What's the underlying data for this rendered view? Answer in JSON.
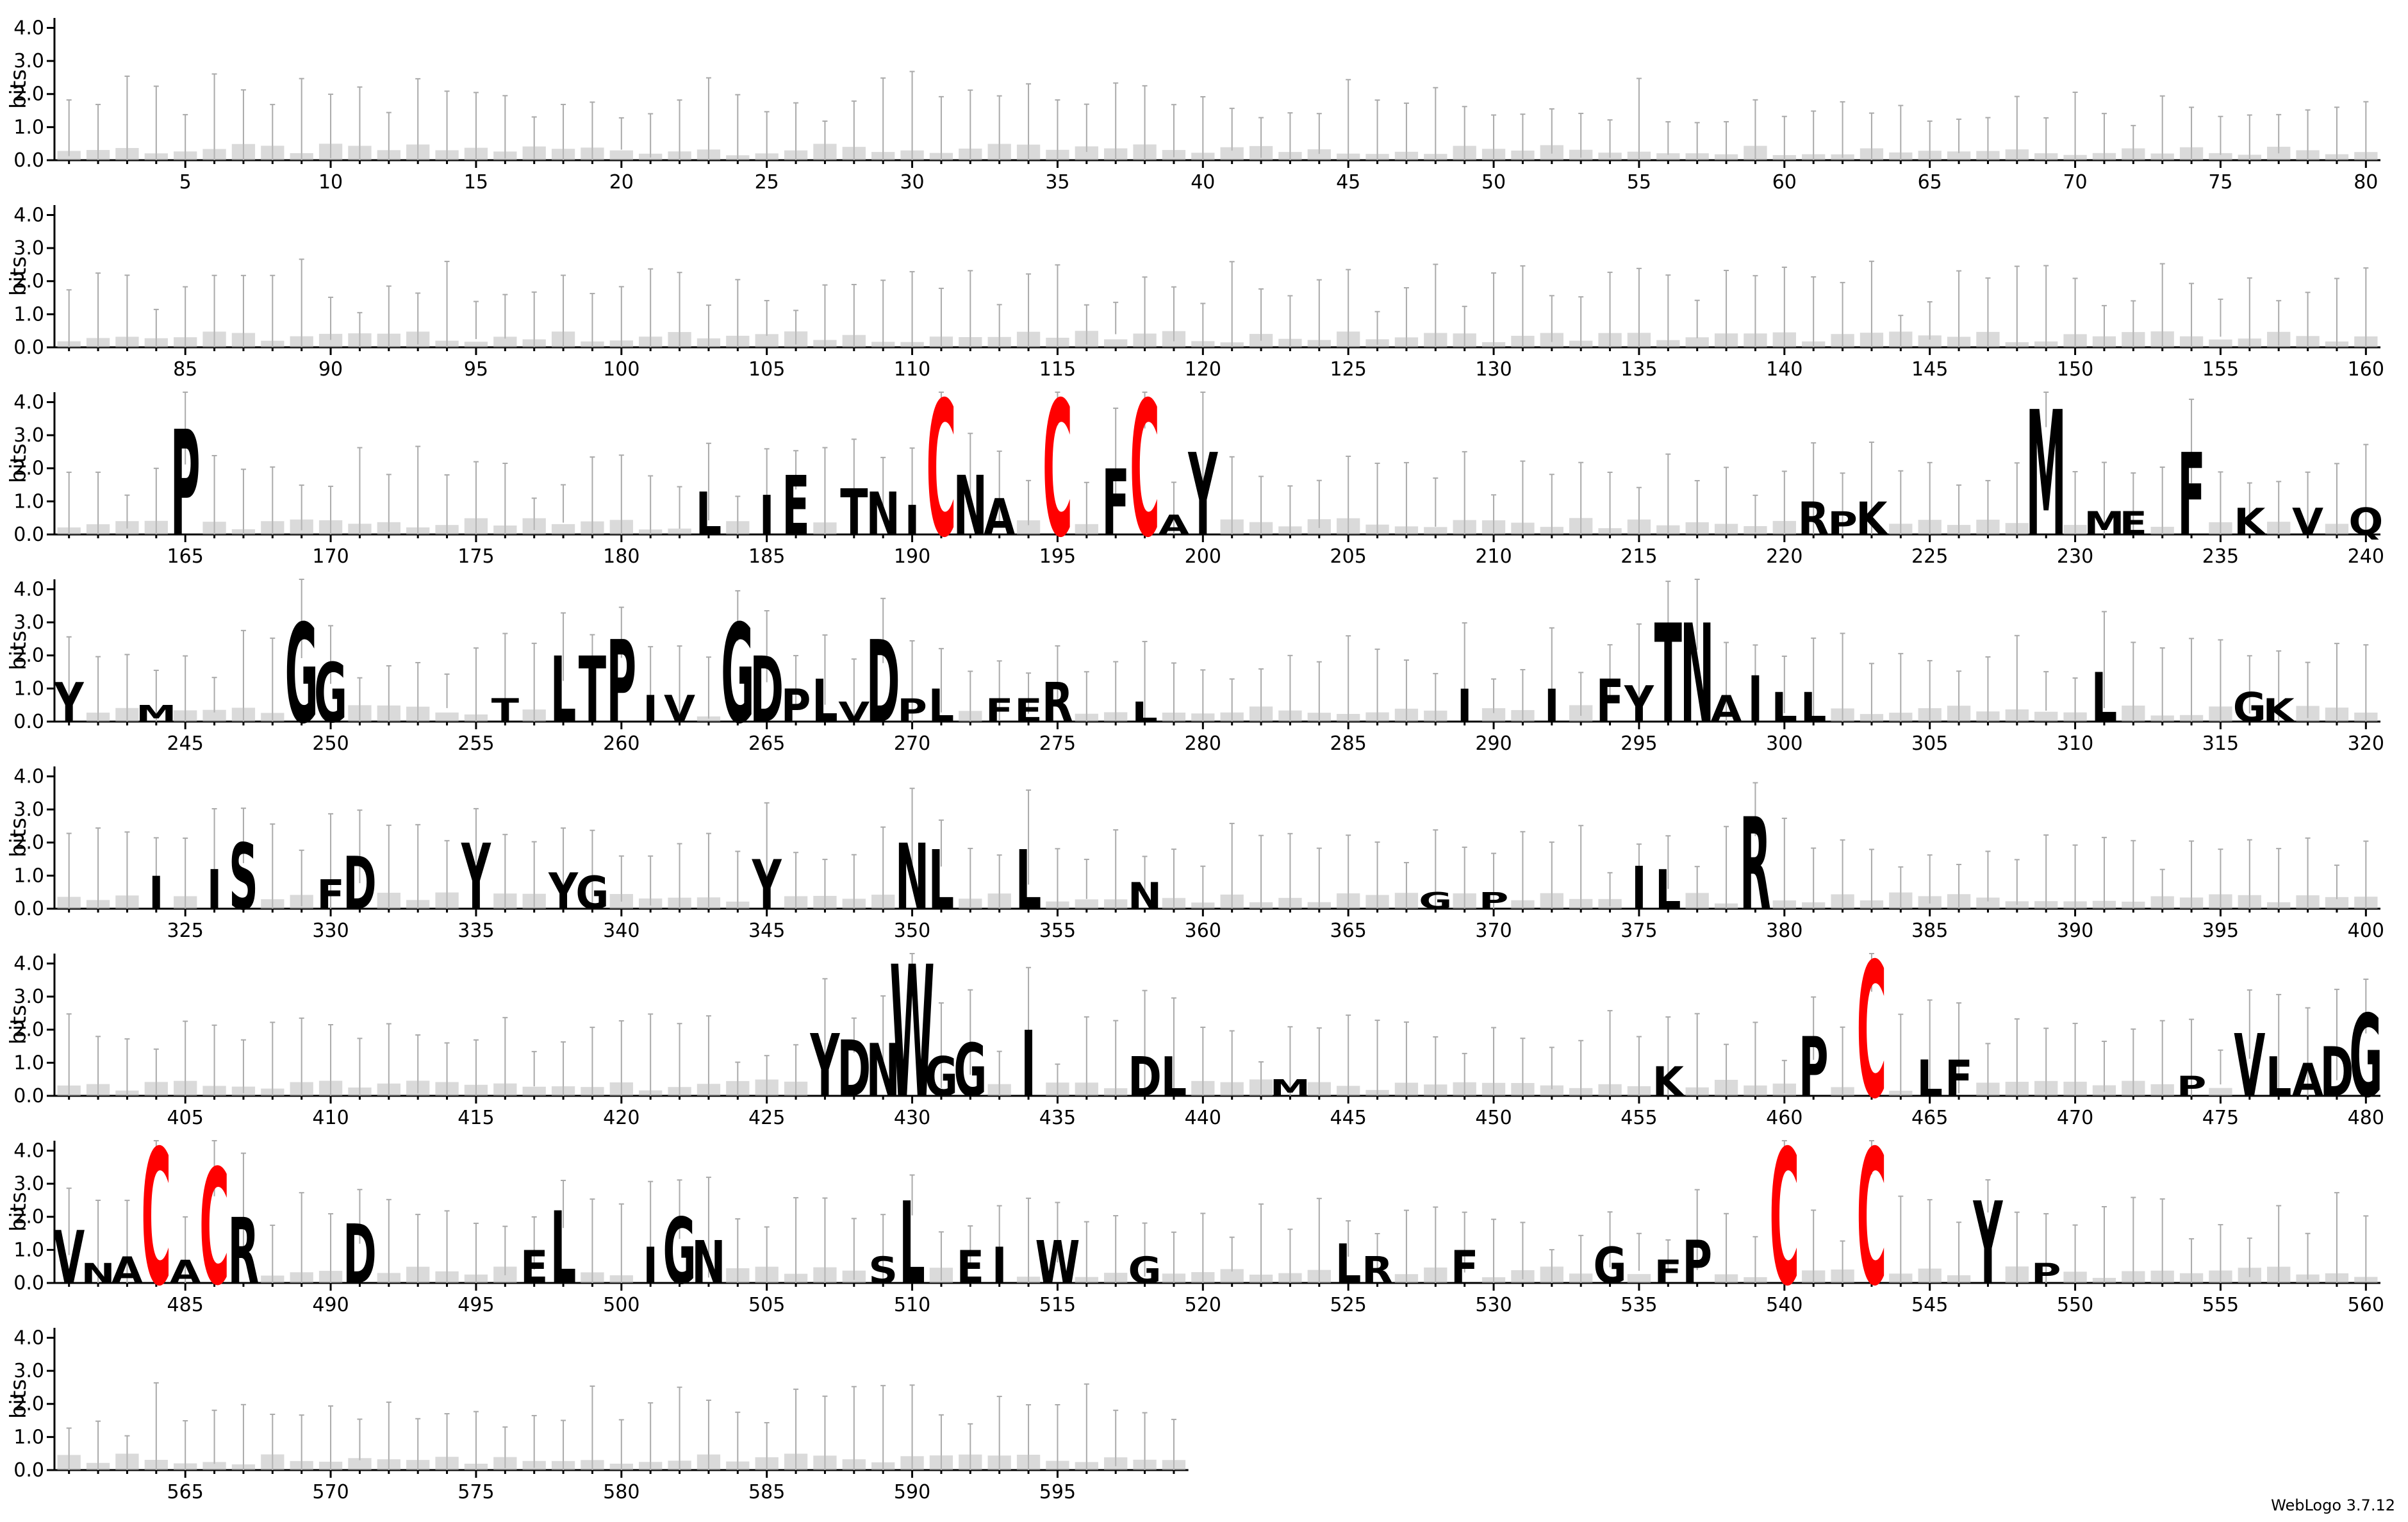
{
  "footer": "WebLogo 3.7.12",
  "colors": {
    "default": "#000000",
    "cys": "#ff0000",
    "errorbar": "#aaaaaa"
  },
  "chart_data": {
    "type": "sequence-logo",
    "title": "",
    "xlabel": "",
    "ylabel": "bits",
    "ylim": [
      0,
      4.3
    ],
    "yticks": [
      "0.0",
      "1.0",
      "2.0",
      "3.0",
      "4.0"
    ],
    "positions_per_row": 80,
    "x_range": [
      1,
      599
    ],
    "xtick_step": 5,
    "letters": [
      {
        "pos": 165,
        "letter": "P",
        "bits": 3.2
      },
      {
        "pos": 183,
        "letter": "L",
        "bits": 1.3
      },
      {
        "pos": 185,
        "letter": "I",
        "bits": 1.2
      },
      {
        "pos": 186,
        "letter": "E",
        "bits": 1.8
      },
      {
        "pos": 188,
        "letter": "T",
        "bits": 1.4
      },
      {
        "pos": 189,
        "letter": "N",
        "bits": 1.3
      },
      {
        "pos": 190,
        "letter": "I",
        "bits": 0.9
      },
      {
        "pos": 191,
        "letter": "C",
        "bits": 4.1
      },
      {
        "pos": 192,
        "letter": "N",
        "bits": 1.8
      },
      {
        "pos": 193,
        "letter": "A",
        "bits": 1.1
      },
      {
        "pos": 195,
        "letter": "C",
        "bits": 4.1
      },
      {
        "pos": 197,
        "letter": "F",
        "bits": 2.0
      },
      {
        "pos": 198,
        "letter": "C",
        "bits": 4.1
      },
      {
        "pos": 199,
        "letter": "A",
        "bits": 0.6
      },
      {
        "pos": 200,
        "letter": "Y",
        "bits": 2.5
      },
      {
        "pos": 221,
        "letter": "R",
        "bits": 1.0
      },
      {
        "pos": 222,
        "letter": "P",
        "bits": 0.7
      },
      {
        "pos": 223,
        "letter": "K",
        "bits": 1.0
      },
      {
        "pos": 229,
        "letter": "M",
        "bits": 3.8
      },
      {
        "pos": 231,
        "letter": "M",
        "bits": 0.7
      },
      {
        "pos": 232,
        "letter": "E",
        "bits": 0.7
      },
      {
        "pos": 234,
        "letter": "F",
        "bits": 2.5
      },
      {
        "pos": 236,
        "letter": "K",
        "bits": 0.8
      },
      {
        "pos": 238,
        "letter": "V",
        "bits": 0.8
      },
      {
        "pos": 240,
        "letter": "Q",
        "bits": 0.8
      },
      {
        "pos": 241,
        "letter": "Y",
        "bits": 1.2
      },
      {
        "pos": 244,
        "letter": "M",
        "bits": 0.5
      },
      {
        "pos": 249,
        "letter": "G",
        "bits": 3.0
      },
      {
        "pos": 250,
        "letter": "G",
        "bits": 1.8
      },
      {
        "pos": 256,
        "letter": "T",
        "bits": 0.7
      },
      {
        "pos": 258,
        "letter": "L",
        "bits": 2.0
      },
      {
        "pos": 259,
        "letter": "T",
        "bits": 2.0
      },
      {
        "pos": 260,
        "letter": "P",
        "bits": 2.5
      },
      {
        "pos": 261,
        "letter": "I",
        "bits": 0.8
      },
      {
        "pos": 262,
        "letter": "V",
        "bits": 0.8
      },
      {
        "pos": 264,
        "letter": "G",
        "bits": 3.0
      },
      {
        "pos": 265,
        "letter": "D",
        "bits": 2.0
      },
      {
        "pos": 266,
        "letter": "P",
        "bits": 1.0
      },
      {
        "pos": 267,
        "letter": "L",
        "bits": 1.3
      },
      {
        "pos": 268,
        "letter": "V",
        "bits": 0.6
      },
      {
        "pos": 269,
        "letter": "D",
        "bits": 2.5
      },
      {
        "pos": 270,
        "letter": "P",
        "bits": 0.7
      },
      {
        "pos": 271,
        "letter": "L",
        "bits": 1.0
      },
      {
        "pos": 273,
        "letter": "F",
        "bits": 0.7
      },
      {
        "pos": 274,
        "letter": "E",
        "bits": 0.7
      },
      {
        "pos": 275,
        "letter": "R",
        "bits": 1.2
      },
      {
        "pos": 278,
        "letter": "L",
        "bits": 0.6
      },
      {
        "pos": 289,
        "letter": "I",
        "bits": 1.0
      },
      {
        "pos": 292,
        "letter": "I",
        "bits": 1.0
      },
      {
        "pos": 294,
        "letter": "F",
        "bits": 1.3
      },
      {
        "pos": 295,
        "letter": "Y",
        "bits": 1.1
      },
      {
        "pos": 296,
        "letter": "T",
        "bits": 3.0
      },
      {
        "pos": 297,
        "letter": "N",
        "bits": 3.0
      },
      {
        "pos": 298,
        "letter": "A",
        "bits": 0.8
      },
      {
        "pos": 299,
        "letter": "I",
        "bits": 1.4
      },
      {
        "pos": 300,
        "letter": "L",
        "bits": 0.9
      },
      {
        "pos": 301,
        "letter": "L",
        "bits": 0.9
      },
      {
        "pos": 311,
        "letter": "L",
        "bits": 1.5
      },
      {
        "pos": 316,
        "letter": "G",
        "bits": 0.9
      },
      {
        "pos": 317,
        "letter": "K",
        "bits": 0.7
      },
      {
        "pos": 324,
        "letter": "I",
        "bits": 1.0
      },
      {
        "pos": 326,
        "letter": "I",
        "bits": 1.2
      },
      {
        "pos": 327,
        "letter": "S",
        "bits": 2.0
      },
      {
        "pos": 330,
        "letter": "F",
        "bits": 0.9
      },
      {
        "pos": 331,
        "letter": "D",
        "bits": 1.6
      },
      {
        "pos": 335,
        "letter": "Y",
        "bits": 2.0
      },
      {
        "pos": 338,
        "letter": "Y",
        "bits": 1.1
      },
      {
        "pos": 339,
        "letter": "G",
        "bits": 1.0
      },
      {
        "pos": 345,
        "letter": "Y",
        "bits": 1.5
      },
      {
        "pos": 350,
        "letter": "N",
        "bits": 2.0
      },
      {
        "pos": 351,
        "letter": "L",
        "bits": 1.8
      },
      {
        "pos": 354,
        "letter": "L",
        "bits": 1.8
      },
      {
        "pos": 358,
        "letter": "N",
        "bits": 0.8
      },
      {
        "pos": 368,
        "letter": "G",
        "bits": 0.5
      },
      {
        "pos": 370,
        "letter": "P",
        "bits": 0.5
      },
      {
        "pos": 375,
        "letter": "I",
        "bits": 1.3
      },
      {
        "pos": 376,
        "letter": "L",
        "bits": 1.2
      },
      {
        "pos": 379,
        "letter": "R",
        "bits": 2.8
      },
      {
        "pos": 427,
        "letter": "Y",
        "bits": 1.9
      },
      {
        "pos": 428,
        "letter": "D",
        "bits": 1.7
      },
      {
        "pos": 429,
        "letter": "N",
        "bits": 1.6
      },
      {
        "pos": 430,
        "letter": "W",
        "bits": 4.0
      },
      {
        "pos": 431,
        "letter": "G",
        "bits": 1.2
      },
      {
        "pos": 432,
        "letter": "G",
        "bits": 1.6
      },
      {
        "pos": 434,
        "letter": "I",
        "bits": 2.0
      },
      {
        "pos": 438,
        "letter": "D",
        "bits": 1.2
      },
      {
        "pos": 439,
        "letter": "L",
        "bits": 1.2
      },
      {
        "pos": 443,
        "letter": "M",
        "bits": 0.5
      },
      {
        "pos": 456,
        "letter": "K",
        "bits": 0.9
      },
      {
        "pos": 461,
        "letter": "P",
        "bits": 1.8
      },
      {
        "pos": 463,
        "letter": "C",
        "bits": 4.1
      },
      {
        "pos": 465,
        "letter": "L",
        "bits": 1.1
      },
      {
        "pos": 466,
        "letter": "F",
        "bits": 1.1
      },
      {
        "pos": 474,
        "letter": "P",
        "bits": 0.6
      },
      {
        "pos": 476,
        "letter": "V",
        "bits": 1.9
      },
      {
        "pos": 477,
        "letter": "L",
        "bits": 1.2
      },
      {
        "pos": 478,
        "letter": "A",
        "bits": 1.0
      },
      {
        "pos": 479,
        "letter": "D",
        "bits": 1.5
      },
      {
        "pos": 480,
        "letter": "G",
        "bits": 2.5
      },
      {
        "pos": 481,
        "letter": "V",
        "bits": 1.6
      },
      {
        "pos": 482,
        "letter": "N",
        "bits": 0.6
      },
      {
        "pos": 483,
        "letter": "A",
        "bits": 0.8
      },
      {
        "pos": 484,
        "letter": "C",
        "bits": 4.1
      },
      {
        "pos": 485,
        "letter": "A",
        "bits": 0.7
      },
      {
        "pos": 486,
        "letter": "C",
        "bits": 3.5
      },
      {
        "pos": 487,
        "letter": "R",
        "bits": 2.0
      },
      {
        "pos": 491,
        "letter": "D",
        "bits": 1.8
      },
      {
        "pos": 497,
        "letter": "E",
        "bits": 1.0
      },
      {
        "pos": 498,
        "letter": "L",
        "bits": 2.2
      },
      {
        "pos": 501,
        "letter": "I",
        "bits": 1.1
      },
      {
        "pos": 502,
        "letter": "G",
        "bits": 2.0
      },
      {
        "pos": 503,
        "letter": "N",
        "bits": 1.3
      },
      {
        "pos": 509,
        "letter": "S",
        "bits": 0.8
      },
      {
        "pos": 510,
        "letter": "L",
        "bits": 2.5
      },
      {
        "pos": 512,
        "letter": "E",
        "bits": 1.0
      },
      {
        "pos": 513,
        "letter": "I",
        "bits": 1.1
      },
      {
        "pos": 515,
        "letter": "W",
        "bits": 1.3
      },
      {
        "pos": 518,
        "letter": "G",
        "bits": 0.8
      },
      {
        "pos": 525,
        "letter": "L",
        "bits": 1.2
      },
      {
        "pos": 526,
        "letter": "R",
        "bits": 0.8
      },
      {
        "pos": 529,
        "letter": "F",
        "bits": 1.0
      },
      {
        "pos": 534,
        "letter": "G",
        "bits": 1.1
      },
      {
        "pos": 536,
        "letter": "F",
        "bits": 0.7
      },
      {
        "pos": 537,
        "letter": "P",
        "bits": 1.3
      },
      {
        "pos": 540,
        "letter": "C",
        "bits": 4.1
      },
      {
        "pos": 543,
        "letter": "C",
        "bits": 4.1
      },
      {
        "pos": 547,
        "letter": "Y",
        "bits": 2.5
      },
      {
        "pos": 549,
        "letter": "P",
        "bits": 0.6
      }
    ]
  }
}
